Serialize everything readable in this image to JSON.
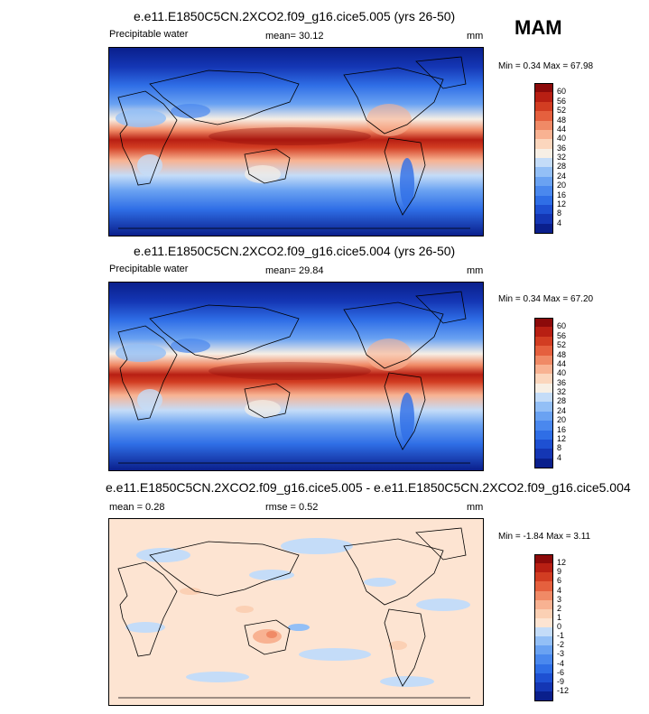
{
  "season_label": "MAM",
  "panels": [
    {
      "title": "e.e11.E1850C5CN.2XCO2.f09_g16.cice5.005 (yrs 26-50)",
      "variable": "Precipitable water",
      "mean_text": "mean=  30.12",
      "units": "mm",
      "minmax_text": "Min =   0.34 Max =  67.98"
    },
    {
      "title": "e.e11.E1850C5CN.2XCO2.f09_g16.cice5.004 (yrs 26-50)",
      "variable": "Precipitable water",
      "mean_text": "mean=  29.84",
      "units": "mm",
      "minmax_text": "Min =   0.34 Max =  67.20"
    },
    {
      "title": "e.e11.E1850C5CN.2XCO2.f09_g16.cice5.005 - e.e11.E1850C5CN.2XCO2.f09_g16.cice5.004",
      "variable": "",
      "mean_text": "mean =   0.28",
      "rmse_text": "rmse =   0.52",
      "units": "mm",
      "minmax_text": "Min =  -1.84 Max =   3.11"
    }
  ],
  "chart_data": [
    {
      "type": "heatmap",
      "title": "e.e11.E1850C5CN.2XCO2.f09_g16.cice5.005 (yrs 26-50)",
      "variable": "Precipitable water",
      "units": "mm",
      "mean": 30.12,
      "min": 0.34,
      "max": 67.98,
      "colorbar_levels": [
        "4",
        "8",
        "12",
        "16",
        "20",
        "24",
        "28",
        "32",
        "36",
        "40",
        "44",
        "48",
        "52",
        "56",
        "60"
      ],
      "colorbar_colors": [
        "#0a1f8c",
        "#1436b4",
        "#1e50d2",
        "#2f6ee6",
        "#4a88ee",
        "#6aa2f2",
        "#93bff6",
        "#c4dcf8",
        "#f7efe5",
        "#fbd6bd",
        "#f8b292",
        "#f08a66",
        "#e5603e",
        "#d23d22",
        "#b81f13",
        "#8c0a0a"
      ],
      "latitude_profile": [
        {
          "lat": 80,
          "value": 4
        },
        {
          "lat": 60,
          "value": 10
        },
        {
          "lat": 45,
          "value": 16
        },
        {
          "lat": 30,
          "value": 26
        },
        {
          "lat": 15,
          "value": 42
        },
        {
          "lat": 5,
          "value": 58
        },
        {
          "lat": -5,
          "value": 52
        },
        {
          "lat": -15,
          "value": 42
        },
        {
          "lat": -30,
          "value": 26
        },
        {
          "lat": -45,
          "value": 14
        },
        {
          "lat": -60,
          "value": 8
        },
        {
          "lat": -80,
          "value": 3
        }
      ]
    },
    {
      "type": "heatmap",
      "title": "e.e11.E1850C5CN.2XCO2.f09_g16.cice5.004 (yrs 26-50)",
      "variable": "Precipitable water",
      "units": "mm",
      "mean": 29.84,
      "min": 0.34,
      "max": 67.2,
      "colorbar_levels": [
        "4",
        "8",
        "12",
        "16",
        "20",
        "24",
        "28",
        "32",
        "36",
        "40",
        "44",
        "48",
        "52",
        "56",
        "60"
      ],
      "colorbar_colors": [
        "#0a1f8c",
        "#1436b4",
        "#1e50d2",
        "#2f6ee6",
        "#4a88ee",
        "#6aa2f2",
        "#93bff6",
        "#c4dcf8",
        "#f7efe5",
        "#fbd6bd",
        "#f8b292",
        "#f08a66",
        "#e5603e",
        "#d23d22",
        "#b81f13",
        "#8c0a0a"
      ],
      "latitude_profile": [
        {
          "lat": 80,
          "value": 4
        },
        {
          "lat": 60,
          "value": 10
        },
        {
          "lat": 45,
          "value": 16
        },
        {
          "lat": 30,
          "value": 26
        },
        {
          "lat": 15,
          "value": 42
        },
        {
          "lat": 5,
          "value": 57
        },
        {
          "lat": -5,
          "value": 52
        },
        {
          "lat": -15,
          "value": 41
        },
        {
          "lat": -30,
          "value": 26
        },
        {
          "lat": -45,
          "value": 14
        },
        {
          "lat": -60,
          "value": 8
        },
        {
          "lat": -80,
          "value": 3
        }
      ]
    },
    {
      "type": "heatmap",
      "title": "e.e11.E1850C5CN.2XCO2.f09_g16.cice5.005 - e.e11.E1850C5CN.2XCO2.f09_g16.cice5.004",
      "units": "mm",
      "mean": 0.28,
      "rmse": 0.52,
      "min": -1.84,
      "max": 3.11,
      "colorbar_levels": [
        "-12",
        "-9",
        "-6",
        "-4",
        "-3",
        "-2",
        "-1",
        "0",
        "1",
        "2",
        "3",
        "4",
        "6",
        "9",
        "12"
      ],
      "colorbar_colors": [
        "#0a1f8c",
        "#1436b4",
        "#1e50d2",
        "#2f6ee6",
        "#4a88ee",
        "#6aa2f2",
        "#93bff6",
        "#c4dcf8",
        "#fde4d2",
        "#fbd0b4",
        "#f8b292",
        "#f08a66",
        "#e5603e",
        "#d23d22",
        "#b81f13",
        "#8c0a0a"
      ]
    }
  ]
}
